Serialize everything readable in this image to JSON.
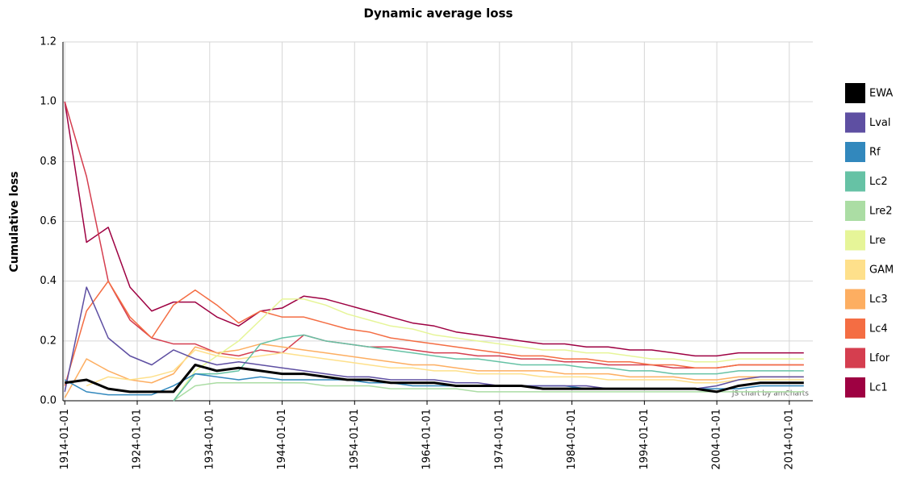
{
  "chart_data": {
    "type": "line",
    "title": "Dynamic average loss",
    "y_label": "Cumulative loss",
    "credit": "JS chart by amCharts",
    "x": [
      "1914-01-01",
      "1917-01-01",
      "1920-01-01",
      "1923-01-01",
      "1926-01-01",
      "1929-01-01",
      "1932-01-01",
      "1935-01-01",
      "1938-01-01",
      "1941-01-01",
      "1944-01-01",
      "1947-01-01",
      "1950-01-01",
      "1953-01-01",
      "1956-01-01",
      "1959-01-01",
      "1962-01-01",
      "1965-01-01",
      "1968-01-01",
      "1971-01-01",
      "1974-01-01",
      "1977-01-01",
      "1980-01-01",
      "1983-01-01",
      "1986-01-01",
      "1989-01-01",
      "1992-01-01",
      "1995-01-01",
      "1998-01-01",
      "2001-01-01",
      "2004-01-01",
      "2007-01-01",
      "2010-01-01",
      "2013-01-01",
      "2016-01-01"
    ],
    "xlim": [
      "1913-10-01",
      "2017-04-01"
    ],
    "xticks": [
      "1914-01-01",
      "1924-01-01",
      "1934-01-01",
      "1944-01-01",
      "1954-01-01",
      "1964-01-01",
      "1974-01-01",
      "1984-01-01",
      "1994-01-01",
      "2004-01-01",
      "2014-01-01"
    ],
    "ylim": [
      0,
      1.2
    ],
    "yticks": [
      {
        "value": 0,
        "label": "0.0"
      },
      0.2,
      0.4,
      0.6,
      0.8,
      {
        "value": 1,
        "label": "1.0"
      },
      1.2
    ],
    "grid": true,
    "legend": "right",
    "series": [
      {
        "name": "EWA",
        "color": "#000000",
        "width": 3,
        "values": [
          0.06,
          0.07,
          0.04,
          0.03,
          0.03,
          0.03,
          0.12,
          0.1,
          0.11,
          0.1,
          0.09,
          0.09,
          0.08,
          0.07,
          0.07,
          0.06,
          0.06,
          0.06,
          0.05,
          0.05,
          0.05,
          0.05,
          0.04,
          0.04,
          0.04,
          0.04,
          0.04,
          0.04,
          0.04,
          0.04,
          0.03,
          0.05,
          0.06,
          0.06,
          0.06
        ]
      },
      {
        "name": "Lval",
        "color": "#5e4fa2",
        "width": 1.5,
        "values": [
          0.03,
          0.38,
          0.21,
          0.15,
          0.12,
          0.17,
          0.14,
          0.12,
          0.13,
          0.12,
          0.11,
          0.1,
          0.09,
          0.08,
          0.08,
          0.07,
          0.07,
          0.07,
          0.06,
          0.06,
          0.05,
          0.05,
          0.05,
          0.05,
          0.05,
          0.04,
          0.04,
          0.04,
          0.04,
          0.04,
          0.05,
          0.07,
          0.08,
          0.08,
          0.08
        ]
      },
      {
        "name": "Rf",
        "color": "#3288bd",
        "width": 1.5,
        "values": [
          0.07,
          0.03,
          0.02,
          0.02,
          0.02,
          0.05,
          0.09,
          0.08,
          0.07,
          0.08,
          0.07,
          0.07,
          0.07,
          0.07,
          0.06,
          0.06,
          0.05,
          0.05,
          0.05,
          0.05,
          0.05,
          0.05,
          0.05,
          0.05,
          0.04,
          0.04,
          0.04,
          0.04,
          0.04,
          0.04,
          0.04,
          0.04,
          0.05,
          0.05,
          0.05
        ]
      },
      {
        "name": "Lc2",
        "color": "#66c2a5",
        "width": 1.5,
        "values": [
          null,
          null,
          null,
          null,
          null,
          0,
          0.09,
          0.09,
          0.1,
          0.19,
          0.21,
          0.22,
          0.2,
          0.19,
          0.18,
          0.17,
          0.16,
          0.15,
          0.14,
          0.14,
          0.13,
          0.12,
          0.12,
          0.12,
          0.11,
          0.11,
          0.1,
          0.1,
          0.09,
          0.09,
          0.09,
          0.1,
          0.1,
          0.1,
          0.1
        ]
      },
      {
        "name": "Lre2",
        "color": "#abdda4",
        "width": 1.5,
        "values": [
          null,
          null,
          null,
          null,
          null,
          0,
          0.05,
          0.06,
          0.06,
          0.06,
          0.06,
          0.06,
          0.05,
          0.05,
          0.05,
          0.04,
          0.04,
          0.04,
          0.04,
          0.03,
          0.03,
          0.03,
          0.03,
          0.03,
          0.03,
          0.03,
          0.03,
          0.03,
          0.03,
          0.03,
          0.03,
          0.03,
          0.03,
          0.03,
          0.03
        ]
      },
      {
        "name": "Lre",
        "color": "#e6f598",
        "width": 1.5,
        "values": [
          null,
          null,
          null,
          null,
          null,
          0,
          0.1,
          0.15,
          0.2,
          0.27,
          0.34,
          0.34,
          0.32,
          0.29,
          0.27,
          0.25,
          0.24,
          0.22,
          0.21,
          0.2,
          0.19,
          0.18,
          0.17,
          0.17,
          0.16,
          0.16,
          0.15,
          0.14,
          0.14,
          0.13,
          0.13,
          0.14,
          0.14,
          0.14,
          0.14
        ]
      },
      {
        "name": "GAM",
        "color": "#fee08b",
        "width": 1.5,
        "values": [
          null,
          0.05,
          0.08,
          0.07,
          0.08,
          0.1,
          0.17,
          0.15,
          0.14,
          0.15,
          0.16,
          0.15,
          0.14,
          0.13,
          0.12,
          0.11,
          0.11,
          0.1,
          0.1,
          0.09,
          0.09,
          0.09,
          0.08,
          0.08,
          0.08,
          0.07,
          0.07,
          0.07,
          0.07,
          0.06,
          0.06,
          0.07,
          0.07,
          0.07,
          0.07
        ]
      },
      {
        "name": "Lc3",
        "color": "#fdae61",
        "width": 1.5,
        "values": [
          0.01,
          0.14,
          0.1,
          0.07,
          0.06,
          0.09,
          0.18,
          0.16,
          0.17,
          0.19,
          0.18,
          0.17,
          0.16,
          0.15,
          0.14,
          0.13,
          0.12,
          0.12,
          0.11,
          0.1,
          0.1,
          0.1,
          0.1,
          0.09,
          0.09,
          0.09,
          0.08,
          0.08,
          0.08,
          0.07,
          0.07,
          0.08,
          0.08,
          0.08,
          0.08
        ]
      },
      {
        "name": "Lc4",
        "color": "#f46d43",
        "width": 1.5,
        "values": [
          0.05,
          0.3,
          0.4,
          0.28,
          0.21,
          0.32,
          0.37,
          0.32,
          0.26,
          0.3,
          0.28,
          0.28,
          0.26,
          0.24,
          0.23,
          0.21,
          0.2,
          0.19,
          0.18,
          0.17,
          0.16,
          0.15,
          0.15,
          0.14,
          0.14,
          0.13,
          0.13,
          0.12,
          0.12,
          0.11,
          0.11,
          0.12,
          0.12,
          0.12,
          0.12
        ]
      },
      {
        "name": "Lfor",
        "color": "#d53e4f",
        "width": 1.5,
        "values": [
          1.0,
          0.75,
          0.4,
          0.27,
          0.21,
          0.19,
          0.19,
          0.16,
          0.15,
          0.17,
          0.16,
          0.22,
          0.2,
          0.19,
          0.18,
          0.18,
          0.17,
          0.16,
          0.16,
          0.15,
          0.15,
          0.14,
          0.14,
          0.13,
          0.13,
          0.12,
          0.12,
          0.12,
          0.11,
          0.11,
          0.11,
          0.12,
          0.12,
          0.12,
          0.12
        ]
      },
      {
        "name": "Lc1",
        "color": "#9e0142",
        "width": 1.5,
        "values": [
          1.0,
          0.53,
          0.58,
          0.38,
          0.3,
          0.33,
          0.33,
          0.28,
          0.25,
          0.3,
          0.31,
          0.35,
          0.34,
          0.32,
          0.3,
          0.28,
          0.26,
          0.25,
          0.23,
          0.22,
          0.21,
          0.2,
          0.19,
          0.19,
          0.18,
          0.18,
          0.17,
          0.17,
          0.16,
          0.15,
          0.15,
          0.16,
          0.16,
          0.16,
          0.16
        ]
      }
    ]
  }
}
